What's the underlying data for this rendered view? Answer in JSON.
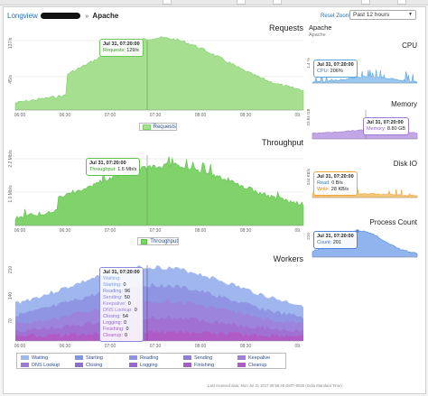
{
  "breadcrumb": {
    "root": "Longview",
    "separator": "»",
    "current": "Apache"
  },
  "toolbar": {
    "reset_zoom": "Reset Zoom",
    "range": "Past 12 hours"
  },
  "panel": {
    "title": "Apache",
    "subtitle": "Apache"
  },
  "colors": {
    "green_fill": "#a6df8f",
    "green_line": "#6cc85a",
    "cpu": "#5aa7e0",
    "memory": "#b08ad8",
    "disk_read": "#5aa7e0",
    "disk_write": "#f0a73a",
    "process": "#4f86d8",
    "waiting": "#8aa8e8",
    "starting": "#7f99e0",
    "reading": "#7b83d8",
    "sending": "#8d7fd9",
    "keepalive": "#a080d6",
    "dns": "#9b7cd4",
    "closing": "#8a6fd0",
    "logging": "#9468cc",
    "finishing": "#a060c8",
    "cleanup": "#b05ac6"
  },
  "x_ticks": [
    "06:00",
    "06:30",
    "07:00",
    "07:30",
    "08:00",
    "08:30",
    "09:"
  ],
  "requests": {
    "title": "Requests",
    "ytick_top": "137/s",
    "ytick_mid": "45/s",
    "legend": "Requests",
    "tooltip": {
      "time": "Jul 31, 07:20:00",
      "label": "Requests:",
      "value": "129/s"
    }
  },
  "throughput": {
    "title": "Throughput",
    "ytick_top": "2.2 Mb/s",
    "ytick_mid": "1.0 Mb/s",
    "legend": "Throughput",
    "tooltip": {
      "time": "Jul 31, 07:20:00",
      "label": "Throughput:",
      "value": "1.6 Mb/s"
    }
  },
  "workers": {
    "title": "Workers",
    "ytick_top": "210",
    "ytick_mid": "140",
    "ytick_low": "70",
    "tooltip": {
      "time": "Jul 31, 07:20:00",
      "rows": [
        {
          "label": "Waiting:",
          "value": ""
        },
        {
          "label": "Starting:",
          "value": "0"
        },
        {
          "label": "Reading:",
          "value": "96"
        },
        {
          "label": "Sending:",
          "value": "50"
        },
        {
          "label": "Keepalive:",
          "value": "0"
        },
        {
          "label": "DNS Lookup:",
          "value": "0"
        },
        {
          "label": "Closing:",
          "value": "54"
        },
        {
          "label": "Logging:",
          "value": "0"
        },
        {
          "label": "Finishing:",
          "value": "0"
        },
        {
          "label": "Cleanup:",
          "value": "0"
        }
      ]
    },
    "legend": [
      "Waiting",
      "Starting",
      "Reading",
      "Sending",
      "Keepalive",
      "DNS Lookup",
      "Closing",
      "Logging",
      "Finishing",
      "Cleanup"
    ]
  },
  "cpu": {
    "title": "CPU",
    "ytick": "1.4 %",
    "tooltip": {
      "time": "Jul 31, 07:20:00",
      "label": "CPU:",
      "value": "206%"
    }
  },
  "memory": {
    "title": "Memory",
    "ytick": "23.84 GB",
    "tooltip": {
      "time": "Jul 31, 07:20:00",
      "label": "Memory:",
      "value": "8.80 GB"
    }
  },
  "diskio": {
    "title": "Disk IO",
    "ytick": "244 KB/s",
    "tooltip": {
      "time": "Jul 31, 07:20:00",
      "read_label": "Read:",
      "read_value": "0 B/s",
      "write_label": "Write:",
      "write_value": "28 KB/s"
    }
  },
  "process_count": {
    "title": "Process Count",
    "ytick": "210",
    "tooltip": {
      "time": "Jul 31, 07:20:00",
      "label": "Count:",
      "value": "201"
    }
  },
  "footer": "Last received data: Mon Jul 31 2017 08:58:49 GMT+0530 (India Standard Time)"
}
